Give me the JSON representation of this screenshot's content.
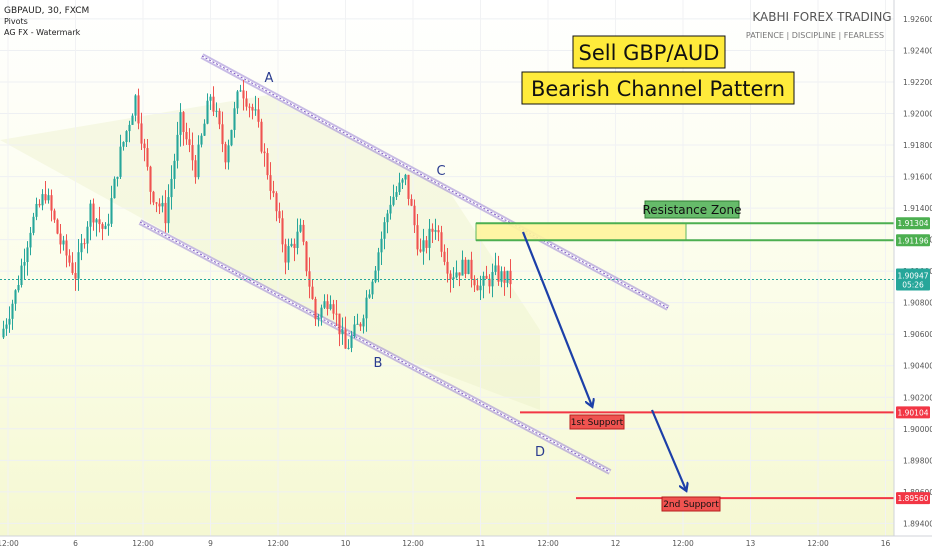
{
  "header": {
    "symbol_line": "GBPAUD, 30, FXCM",
    "indicator_1": "Pivots",
    "indicator_2": "AG FX - Watermark"
  },
  "brand": {
    "name": "KABHI FOREX TRADING",
    "tagline": "PATIENCE  |  DISCIPLINE  |  FEARLESS"
  },
  "headline": {
    "line1": "Sell GBP/AUD",
    "line2": "Bearish Channel Pattern"
  },
  "colors": {
    "bull": "#26a69a",
    "bear": "#ef5350",
    "channel": "#7e57c2",
    "support": "#f23645",
    "resistance": "#4caf50",
    "arrow": "#1c3fa8",
    "headline_bg": "#ffeb3b",
    "zone_fill": "#fff59d"
  },
  "chart_data": {
    "type": "candlestick",
    "symbol": "GBPAUD",
    "timeframe": "30",
    "source": "FXCM",
    "price_axis_ticks": [
      "1.92600",
      "1.92400",
      "1.92200",
      "1.92000",
      "1.91800",
      "1.91600",
      "1.91400",
      "1.91200",
      "1.91000",
      "1.90800",
      "1.90600",
      "1.90400",
      "1.90200",
      "1.90000",
      "1.89800",
      "1.89600",
      "1.89400"
    ],
    "time_axis_ticks": [
      "12:00",
      "6",
      "12:00",
      "9",
      "12:00",
      "10",
      "12:00",
      "11",
      "12:00",
      "12",
      "12:00",
      "13",
      "12:00",
      "16"
    ],
    "ylim": [
      1.8932,
      1.9272
    ],
    "current_price": {
      "value": "1.90947",
      "countdown": "05:26"
    },
    "levels": [
      {
        "name": "resistance_top",
        "value": "1.91304"
      },
      {
        "name": "resistance_bottom",
        "value": "1.91196"
      },
      {
        "name": "first_support",
        "value": "1.90104"
      },
      {
        "name": "second_support",
        "value": "1.89560"
      }
    ],
    "zone_label": "Resistance Zone",
    "support_labels": [
      "1st Support",
      "2nd Support"
    ],
    "wave_points": [
      {
        "label": "A",
        "price": 1.9216
      },
      {
        "label": "B",
        "price": 1.9048
      },
      {
        "label": "C",
        "price": 1.916
      },
      {
        "label": "D",
        "price": 1.899
      }
    ],
    "path_nodes": [
      1.9058,
      1.9086,
      1.9128,
      1.915,
      1.9118,
      1.9098,
      1.914,
      1.9124,
      1.9175,
      1.921,
      1.9152,
      1.9135,
      1.9195,
      1.9165,
      1.9212,
      1.9174,
      1.9218,
      1.9198,
      1.9155,
      1.911,
      1.9125,
      1.907,
      1.9085,
      1.905,
      1.9068,
      1.9105,
      1.9145,
      1.9158,
      1.911,
      1.913,
      1.9098,
      1.9104,
      1.909,
      1.9098,
      1.9094
    ]
  }
}
